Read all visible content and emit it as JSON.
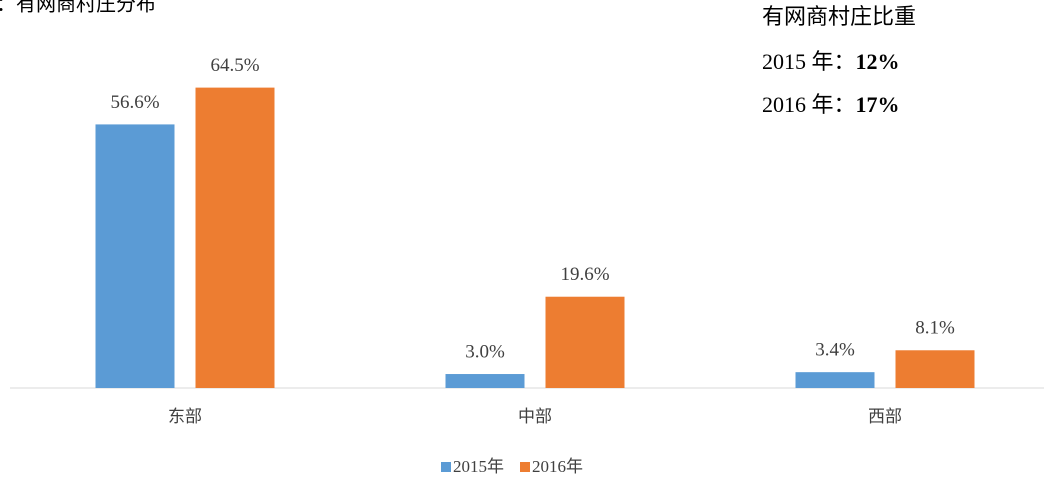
{
  "chart_data": {
    "type": "bar",
    "title": "：有网商村庄分布",
    "categories": [
      "东部",
      "中部",
      "西部"
    ],
    "series": [
      {
        "name": "2015年",
        "color": "#5b9bd5",
        "values": [
          56.6,
          3.0,
          3.4
        ],
        "value_labels": [
          "56.6%",
          "3.0%",
          "3.4%"
        ]
      },
      {
        "name": "2016年",
        "color": "#ed7d31",
        "values": [
          64.5,
          19.6,
          8.1
        ],
        "value_labels": [
          "64.5%",
          "19.6%",
          "8.1%"
        ]
      }
    ],
    "ylim": [
      0,
      70
    ],
    "grid": false,
    "legend": "bottom",
    "annotation": {
      "title": "有网商村庄比重",
      "lines": [
        {
          "label": "2015 年：",
          "value": "12%"
        },
        {
          "label": "2016 年：",
          "value": "17%"
        }
      ]
    }
  }
}
